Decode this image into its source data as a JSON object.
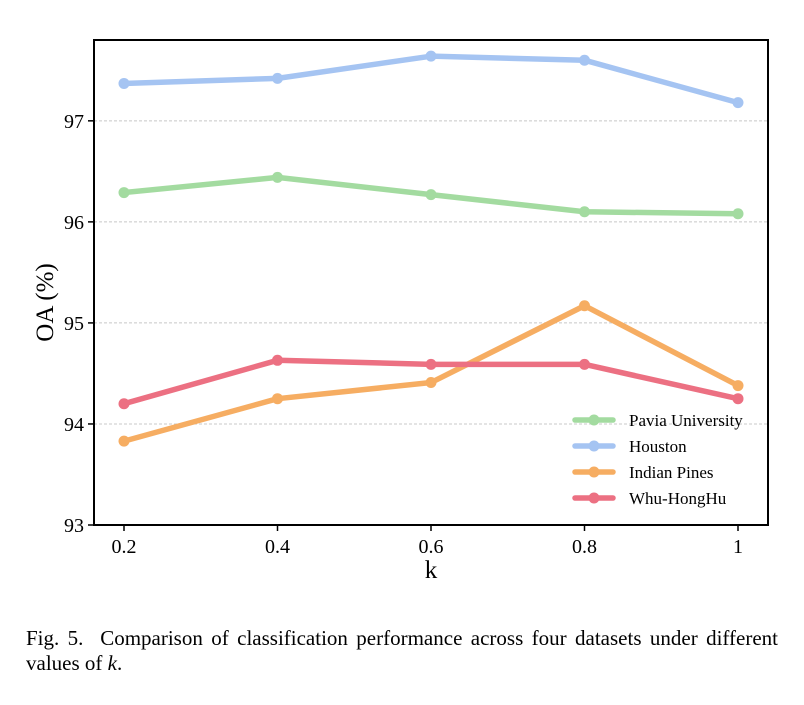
{
  "chart_data": {
    "type": "line",
    "x": [
      0.2,
      0.4,
      0.6,
      0.8,
      1
    ],
    "xticks": [
      "0.2",
      "0.4",
      "0.6",
      "0.8",
      "1"
    ],
    "xlabel": "k",
    "ylabel": "OA (%)",
    "ylim": [
      93,
      97.8
    ],
    "yticks": [
      "93",
      "94",
      "95",
      "96",
      "97"
    ],
    "grid": "horizontal dashed",
    "legend_position": "lower-right",
    "series": [
      {
        "name": "Pavia University",
        "color": "#a3dba0",
        "values": [
          96.29,
          96.44,
          96.27,
          96.1,
          96.08
        ]
      },
      {
        "name": "Houston",
        "color": "#a5c4f2",
        "values": [
          97.37,
          97.42,
          97.64,
          97.6,
          97.18
        ]
      },
      {
        "name": "Indian Pines",
        "color": "#f6ad62",
        "values": [
          93.83,
          94.25,
          94.41,
          95.17,
          94.38
        ]
      },
      {
        "name": "Whu-HongHu",
        "color": "#ec7082",
        "values": [
          94.2,
          94.63,
          94.59,
          94.59,
          94.25
        ]
      }
    ]
  },
  "caption": {
    "label": "Fig. 5.",
    "text": "Comparison of classification performance across four datasets under different values of",
    "variable": "k",
    "end": "."
  }
}
